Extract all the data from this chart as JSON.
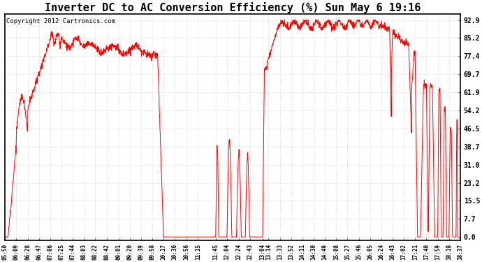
{
  "title": "Inverter DC to AC Conversion Efficiency (%) Sun May 6 19:16",
  "copyright": "Copyright 2012 Cartronics.com",
  "line_color": "#ff0000",
  "background_color": "#ffffff",
  "grid_color": "#bbbbbb",
  "yticks": [
    0.0,
    7.7,
    15.5,
    23.2,
    31.0,
    38.7,
    46.5,
    54.2,
    61.9,
    69.7,
    77.4,
    85.2,
    92.9
  ],
  "ylim": [
    -1.5,
    95.5
  ],
  "xtick_labels": [
    "05:50",
    "06:09",
    "06:28",
    "06:47",
    "07:06",
    "07:25",
    "07:44",
    "08:03",
    "08:22",
    "08:42",
    "09:01",
    "09:20",
    "09:39",
    "09:58",
    "10:17",
    "10:36",
    "10:56",
    "11:15",
    "11:45",
    "12:04",
    "12:24",
    "12:43",
    "13:04",
    "13:14",
    "13:33",
    "13:52",
    "14:11",
    "14:30",
    "14:49",
    "15:08",
    "15:27",
    "15:46",
    "16:05",
    "16:24",
    "16:43",
    "17:02",
    "17:21",
    "17:40",
    "17:59",
    "18:18",
    "18:37"
  ],
  "title_fontsize": 11,
  "copyright_fontsize": 6.5
}
